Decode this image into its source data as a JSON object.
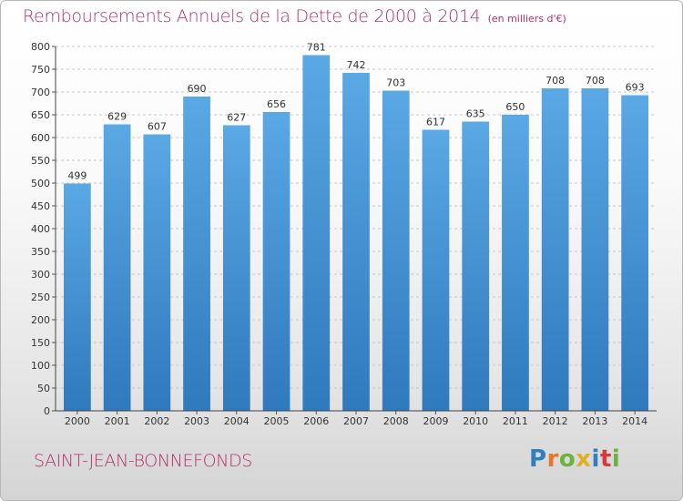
{
  "title": "Remboursements Annuels de la Dette de 2000 à 2014",
  "unit_note": "(en milliers d'€)",
  "commune": "SAINT-JEAN-BONNEFONDS",
  "logo": {
    "text": "Proxiti",
    "letter_colors": [
      "#2f7fc1",
      "#e8762a",
      "#6bb33a",
      "#e0b020",
      "#2f7fc1",
      "#d83a3a",
      "#6bb33a"
    ]
  },
  "colors": {
    "bar": "#5aa8e4",
    "bar_dark": "#2f79bd",
    "title": "#b5306a"
  },
  "chart_data": {
    "type": "bar",
    "title": "Remboursements Annuels de la Dette de 2000 à 2014",
    "xlabel": "",
    "ylabel": "",
    "categories": [
      "2000",
      "2001",
      "2002",
      "2003",
      "2004",
      "2005",
      "2006",
      "2007",
      "2008",
      "2009",
      "2010",
      "2011",
      "2012",
      "2013",
      "2014"
    ],
    "values": [
      499,
      629,
      607,
      690,
      627,
      656,
      781,
      742,
      703,
      617,
      635,
      650,
      708,
      708,
      693
    ],
    "ylim": [
      0,
      800
    ],
    "yticks": [
      0,
      50,
      100,
      150,
      200,
      250,
      300,
      350,
      400,
      450,
      500,
      550,
      600,
      650,
      700,
      750,
      800
    ],
    "grid": true
  }
}
